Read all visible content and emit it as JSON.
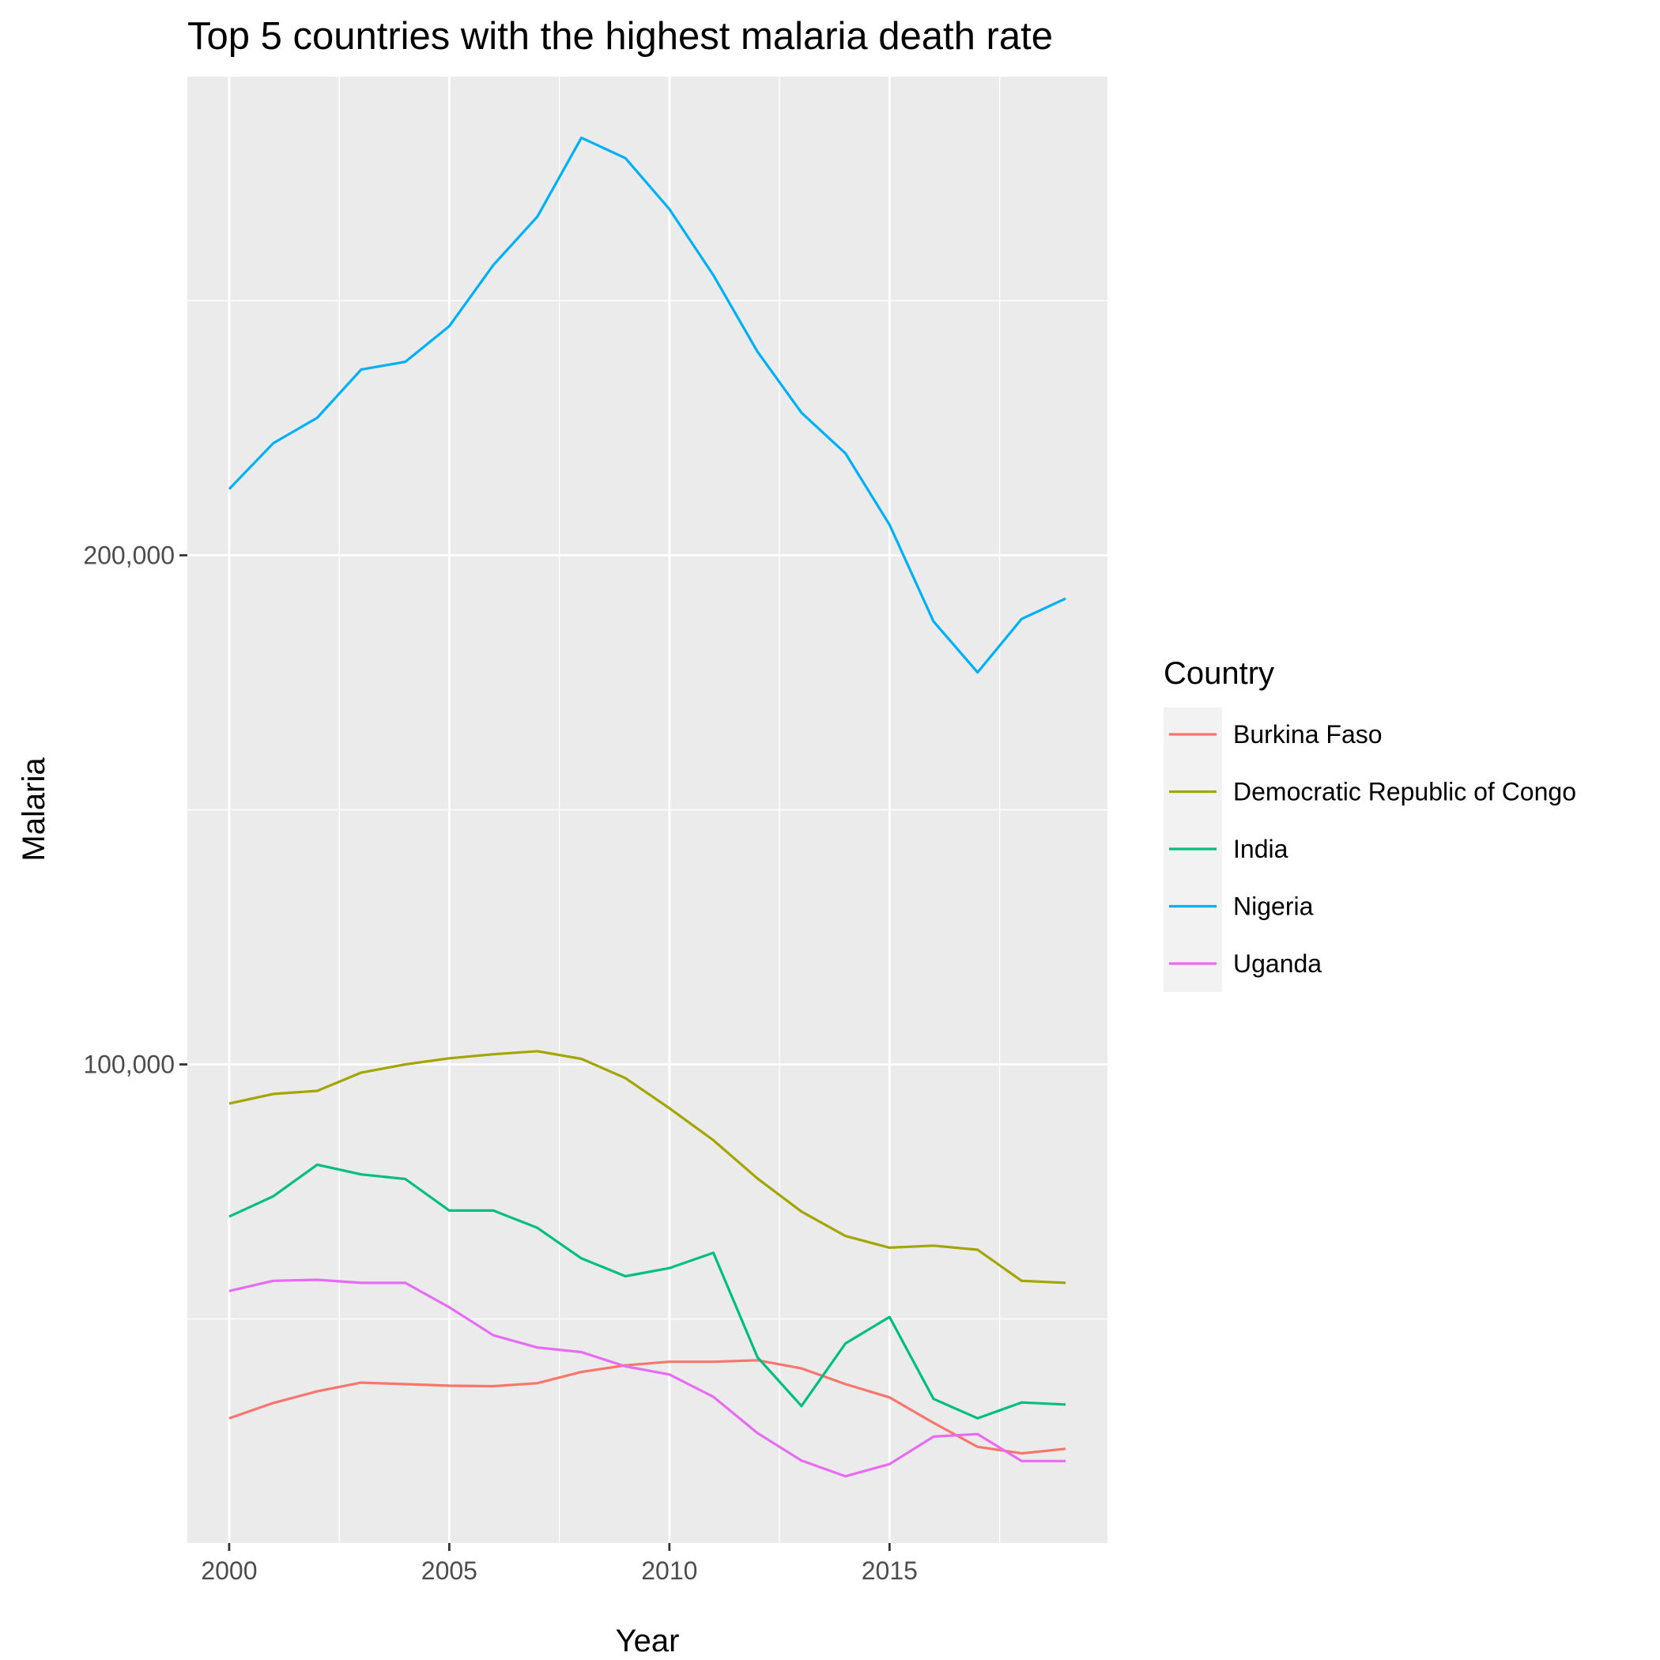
{
  "chart_data": {
    "type": "line",
    "title": "Top 5 countries with the highest malaria death rate",
    "xlabel": "Year",
    "ylabel": "Malaria",
    "xlim": [
      1999.05,
      2019.95
    ],
    "ylim": [
      6000,
      294000
    ],
    "x_ticks": [
      2000,
      2005,
      2010,
      2015
    ],
    "x_tick_labels": [
      "2000",
      "2005",
      "2010",
      "2015"
    ],
    "x_minor_ticks": [
      2002.5,
      2007.5,
      2012.5,
      2017.5
    ],
    "y_ticks": [
      100000,
      200000
    ],
    "y_tick_labels": [
      "100,000",
      "200,000"
    ],
    "y_minor_ticks": [
      50000,
      150000,
      250000
    ],
    "grid": true,
    "legend_title": "Country",
    "legend_position": "right",
    "x": [
      2000,
      2001,
      2002,
      2003,
      2004,
      2005,
      2006,
      2007,
      2008,
      2009,
      2010,
      2011,
      2012,
      2013,
      2014,
      2015,
      2016,
      2017,
      2018,
      2019
    ],
    "series": [
      {
        "name": "Burkina Faso",
        "color": "#F8766D",
        "values": [
          30500,
          33500,
          35800,
          37500,
          37200,
          36900,
          36800,
          37400,
          39600,
          40900,
          41600,
          41600,
          41900,
          40300,
          37200,
          34600,
          29600,
          24900,
          23600,
          24500
        ]
      },
      {
        "name": "Democratic Republic of Congo",
        "color": "#A3A500",
        "values": [
          92300,
          94200,
          94800,
          98400,
          100000,
          101200,
          102000,
          102600,
          101100,
          97300,
          91400,
          85100,
          77600,
          71100,
          66300,
          64000,
          64400,
          63600,
          57500,
          57100
        ]
      },
      {
        "name": "India",
        "color": "#00BF7D",
        "values": [
          70100,
          74100,
          80300,
          78400,
          77500,
          71300,
          71300,
          67900,
          61900,
          58400,
          60000,
          63000,
          42500,
          32900,
          45200,
          50400,
          34300,
          30500,
          33600,
          33200
        ]
      },
      {
        "name": "Nigeria",
        "color": "#00B0F6",
        "values": [
          213000,
          222000,
          227000,
          236500,
          238000,
          245000,
          257000,
          266500,
          282000,
          278000,
          268000,
          255000,
          240000,
          228000,
          220000,
          206000,
          187000,
          177000,
          187500,
          191500
        ]
      },
      {
        "name": "Uganda",
        "color": "#E76BF3",
        "values": [
          55500,
          57500,
          57700,
          57100,
          57100,
          52300,
          46800,
          44400,
          43500,
          40700,
          39100,
          34700,
          27600,
          22200,
          19100,
          21500,
          26900,
          27400,
          22100,
          22100
        ]
      }
    ]
  }
}
